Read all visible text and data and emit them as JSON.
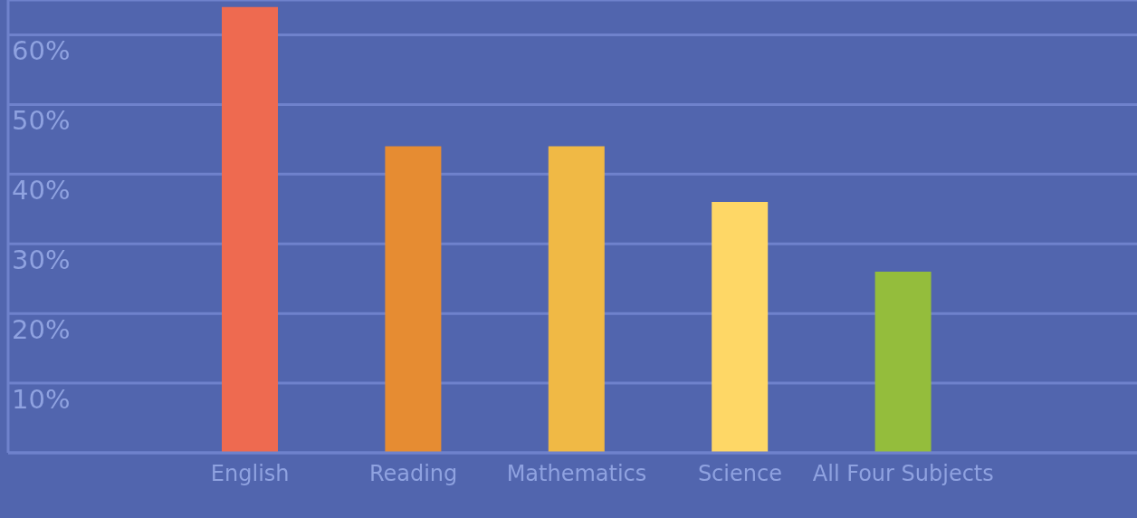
{
  "chart_data": {
    "type": "bar",
    "categories": [
      "English",
      "Reading",
      "Mathematics",
      "Science",
      "All Four Subjects"
    ],
    "values": [
      64,
      44,
      44,
      36,
      26
    ],
    "colors": [
      "#ee6a50",
      "#e68c32",
      "#f0b945",
      "#fed766",
      "#94bd3c"
    ],
    "ylim": [
      0,
      65
    ],
    "yticks": [
      {
        "value": 0,
        "label": null
      },
      {
        "value": 10,
        "label": "10%"
      },
      {
        "value": 20,
        "label": "20%"
      },
      {
        "value": 30,
        "label": "30%"
      },
      {
        "value": 40,
        "label": "40%"
      },
      {
        "value": 50,
        "label": "50%"
      },
      {
        "value": 60,
        "label": "60%"
      }
    ],
    "grid": "y"
  }
}
